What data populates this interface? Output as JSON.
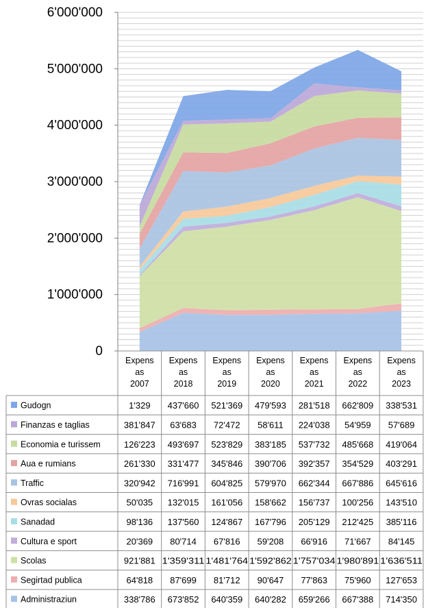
{
  "chart_data": {
    "type": "area",
    "stacked": true,
    "categories": [
      "Expensas 2007",
      "Expensas 2018",
      "Expensas 2019",
      "Expensas 2020",
      "Expensas 2021",
      "Expensas 2022",
      "Expensas 2023"
    ],
    "category_lines": [
      [
        "Expens",
        "as",
        "2007"
      ],
      [
        "Expens",
        "as",
        "2018"
      ],
      [
        "Expens",
        "as",
        "2019"
      ],
      [
        "Expens",
        "as",
        "2020"
      ],
      [
        "Expens",
        "as",
        "2021"
      ],
      [
        "Expens",
        "as",
        "2022"
      ],
      [
        "Expens",
        "as",
        "2023"
      ]
    ],
    "ylim": [
      0,
      6000000
    ],
    "yticks": [
      0,
      1000000,
      2000000,
      3000000,
      4000000,
      5000000,
      6000000
    ],
    "ytick_labels": [
      "0",
      "1'000'000",
      "2'000'000",
      "3'000'000",
      "4'000'000",
      "5'000'000",
      "6'000'000"
    ],
    "grid": true,
    "data_table": true,
    "series": [
      {
        "name": "Gudogn",
        "color": "#7ea6e6",
        "values": [
          1329,
          437660,
          521369,
          479593,
          281518,
          662809,
          338531
        ],
        "labels": [
          "1'329",
          "437'660",
          "521'369",
          "479'593",
          "281'518",
          "662'809",
          "338'531"
        ]
      },
      {
        "name": "Finanzas e taglias",
        "color": "#bca8d8",
        "values": [
          381847,
          63683,
          72472,
          58611,
          224038,
          54959,
          57689
        ],
        "labels": [
          "381'847",
          "63'683",
          "72'472",
          "58'611",
          "224'038",
          "54'959",
          "57'689"
        ]
      },
      {
        "name": "Economia e turissem",
        "color": "#c8dba0",
        "values": [
          126223,
          493697,
          523829,
          383185,
          537732,
          485668,
          419064
        ],
        "labels": [
          "126'223",
          "493'697",
          "523'829",
          "383'185",
          "537'732",
          "485'668",
          "419'064"
        ]
      },
      {
        "name": "Aua e rumians",
        "color": "#e4a3a3",
        "values": [
          261330,
          331477,
          345846,
          390706,
          392357,
          354529,
          403291
        ],
        "labels": [
          "261'330",
          "331'477",
          "345'846",
          "390'706",
          "392'357",
          "354'529",
          "403'291"
        ]
      },
      {
        "name": "Traffic",
        "color": "#a9c3e2",
        "values": [
          320942,
          716991,
          604825,
          579970,
          662344,
          667886,
          645616
        ],
        "labels": [
          "320'942",
          "716'991",
          "604'825",
          "579'970",
          "662'344",
          "667'886",
          "645'616"
        ]
      },
      {
        "name": "Ovras socialas",
        "color": "#f7c99a",
        "values": [
          50035,
          132015,
          161056,
          158662,
          156737,
          100256,
          143510
        ],
        "labels": [
          "50'035",
          "132'015",
          "161'056",
          "158'662",
          "156'737",
          "100'256",
          "143'510"
        ]
      },
      {
        "name": "Sanadad",
        "color": "#a8dde6",
        "values": [
          98136,
          137560,
          124867,
          167796,
          205129,
          212425,
          385116
        ],
        "labels": [
          "98'136",
          "137'560",
          "124'867",
          "167'796",
          "205'129",
          "212'425",
          "385'116"
        ]
      },
      {
        "name": "Cultura e sport",
        "color": "#bfaedc",
        "values": [
          20369,
          80714,
          67816,
          59208,
          66916,
          71667,
          84145
        ],
        "labels": [
          "20'369",
          "80'714",
          "67'816",
          "59'208",
          "66'916",
          "71'667",
          "84'145"
        ]
      },
      {
        "name": "Scolas",
        "color": "#cfe0a6",
        "values": [
          921881,
          1359311,
          1481764,
          1592862,
          1757034,
          1980891,
          1636511
        ],
        "labels": [
          "921'881",
          "1'359'311",
          "1'481'764",
          "1'592'862",
          "1'757'034",
          "1'980'891",
          "1'636'511"
        ]
      },
      {
        "name": "Segirtad publica",
        "color": "#eeaeae",
        "values": [
          64818,
          87699,
          81712,
          90647,
          77863,
          75960,
          127653
        ],
        "labels": [
          "64'818",
          "87'699",
          "81'712",
          "90'647",
          "77'863",
          "75'960",
          "127'653"
        ]
      },
      {
        "name": "Administraziun",
        "color": "#a7c2e6",
        "values": [
          338786,
          673852,
          640359,
          640282,
          659266,
          667388,
          714350
        ],
        "labels": [
          "338'786",
          "673'852",
          "640'359",
          "640'282",
          "659'266",
          "667'388",
          "714'350"
        ]
      }
    ]
  }
}
